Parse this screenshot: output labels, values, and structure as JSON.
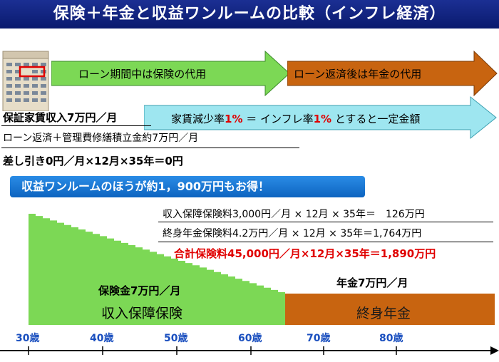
{
  "title": "保険＋年金と収益ワンルームの比較（インフレ経済）",
  "arrows": {
    "loan_period": "ローン期間中は保険の代用",
    "after_loan": "ローン返済後は年金の代用",
    "rent_constant": {
      "pre": "家賃減少率",
      "rate1": "1%",
      "mid": " ＝ インフレ率",
      "rate2": "1%",
      "post": " とすると一定金額"
    }
  },
  "income": {
    "line1": "保証家賃収入7万円／月",
    "line2": "ローン返済＋管理費修繕積立金約7万円／月",
    "line3": "差し引き0円／月×12月×35年＝0円"
  },
  "banner": "収益ワンルームのほうが約1，900万円もお得！",
  "premiums": {
    "line1": "収入保障保険料3,000円／月 × 12月 × 35年＝　126万円",
    "line2": "終身年金保険料4.2万円／月 × 12月 × 35年＝1,764万円",
    "total": "合計保険料45,000円／月×12月×35年＝1,890万円"
  },
  "blocks": {
    "insurance_amount": "保険金7万円／月",
    "insurance_name": "収入保障保険",
    "pension_amount": "年金7万円／月",
    "pension_name": "終身年金"
  },
  "axis": {
    "ticks": [
      "30歳",
      "40歳",
      "50歳",
      "60歳",
      "70歳",
      "80歳"
    ]
  },
  "colors": {
    "title_bg": "#0f1f7a",
    "green": "#7cd855",
    "orange": "#c86410",
    "highlight_red": "#e00000",
    "banner_blue": "#1a78d8",
    "tick_blue": "#1a4fbf"
  },
  "icons": {
    "building": "building-icon"
  }
}
